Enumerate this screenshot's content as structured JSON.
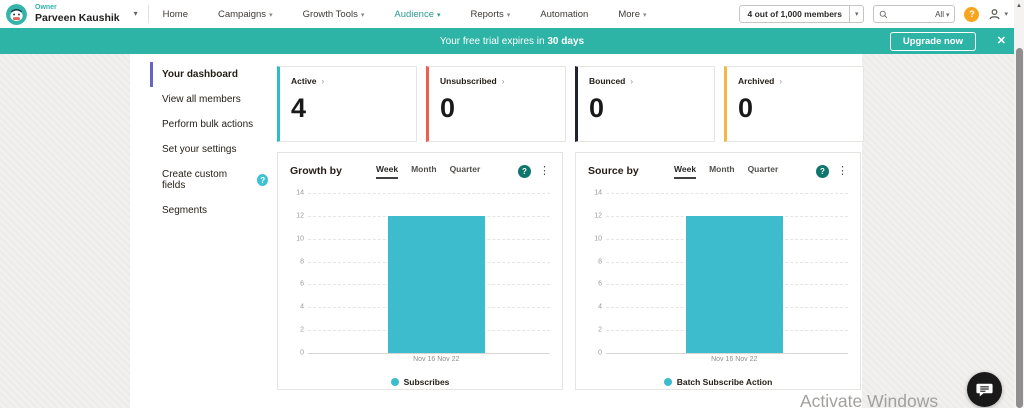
{
  "icons": {
    "chevron_down": "▾",
    "chevron_right": "›",
    "close": "✕",
    "kebab": "⋮",
    "help": "?",
    "scroll_up": "▲"
  },
  "navbar": {
    "owner_label": "Owner",
    "owner_name": "Parveen Kaushik",
    "items": [
      {
        "label": "Home",
        "has_dropdown": false,
        "active": false
      },
      {
        "label": "Campaigns",
        "has_dropdown": true,
        "active": false
      },
      {
        "label": "Growth Tools",
        "has_dropdown": true,
        "active": false
      },
      {
        "label": "Audience",
        "has_dropdown": true,
        "active": true
      },
      {
        "label": "Reports",
        "has_dropdown": true,
        "active": false
      },
      {
        "label": "Automation",
        "has_dropdown": false,
        "active": false
      },
      {
        "label": "More",
        "has_dropdown": true,
        "active": false
      }
    ],
    "members_dropdown": "4 out of 1,000 members",
    "search_filter": "All"
  },
  "banner": {
    "color": "#2db4a6",
    "message": "Your free trial expires in",
    "message_bold": "30 days",
    "upgrade_label": "Upgrade now"
  },
  "sidebar": {
    "items": [
      {
        "label": "Your dashboard",
        "active": true,
        "has_help": false
      },
      {
        "label": "View all members",
        "active": false,
        "has_help": false
      },
      {
        "label": "Perform bulk actions",
        "active": false,
        "has_help": false
      },
      {
        "label": "Set your settings",
        "active": false,
        "has_help": false
      },
      {
        "label": "Create custom fields",
        "active": false,
        "has_help": true
      },
      {
        "label": "Segments",
        "active": false,
        "has_help": false
      }
    ]
  },
  "stats": {
    "cards": [
      {
        "label": "Active",
        "value": "4",
        "accent": "#2ebec8"
      },
      {
        "label": "Unsubscribed",
        "value": "0",
        "accent": "#ee5e4d"
      },
      {
        "label": "Bounced",
        "value": "0",
        "accent": "#1c2430"
      },
      {
        "label": "Archived",
        "value": "0",
        "accent": "#f4b73f"
      }
    ]
  },
  "chart_data": [
    {
      "type": "bar",
      "title": "Growth by",
      "tabs": [
        "Week",
        "Month",
        "Quarter"
      ],
      "active_tab": "Week",
      "categories": [
        "Nov 16 Nov 22"
      ],
      "series": [
        {
          "name": "Subscribes",
          "values": [
            12
          ]
        }
      ],
      "ylim": [
        0,
        14
      ],
      "yticks": [
        0,
        2,
        4,
        6,
        8,
        10,
        12,
        14
      ],
      "grid": true,
      "legend_position": "bottom",
      "bar_color": "#3cbccd"
    },
    {
      "type": "bar",
      "title": "Source by",
      "tabs": [
        "Week",
        "Month",
        "Quarter"
      ],
      "active_tab": "Week",
      "categories": [
        "Nov 16 Nov 22"
      ],
      "series": [
        {
          "name": "Batch Subscribe Action",
          "values": [
            12
          ]
        }
      ],
      "ylim": [
        0,
        14
      ],
      "yticks": [
        0,
        2,
        4,
        6,
        8,
        10,
        12,
        14
      ],
      "grid": true,
      "legend_position": "bottom",
      "bar_color": "#3cbccd"
    }
  ],
  "watermark": "Activate Windows"
}
